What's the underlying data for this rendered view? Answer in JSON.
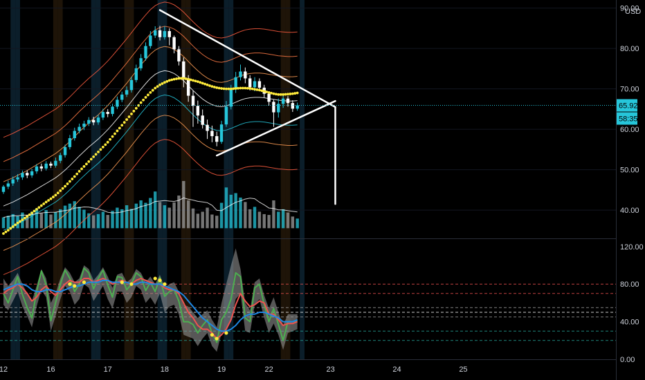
{
  "chart_data": [
    {
      "type": "candlestick",
      "panel": "price",
      "currency": "USD",
      "ylim": [
        33,
        92
      ],
      "y_ticks": [
        "40.00",
        "50.00",
        "60.00",
        "70.00",
        "80.00",
        "90.00"
      ],
      "last_price": "65.92",
      "countdown": "58:35",
      "candles": [
        [
          44.5,
          45.8,
          44.0,
          46.2
        ],
        [
          45.8,
          46.6,
          45.2,
          47.3
        ],
        [
          46.6,
          47.6,
          46.0,
          48.3
        ],
        [
          47.6,
          48.1,
          47.0,
          48.9
        ],
        [
          48.1,
          49.2,
          47.5,
          49.8
        ],
        [
          49.2,
          48.6,
          47.9,
          49.8
        ],
        [
          48.6,
          49.6,
          48.0,
          50.2
        ],
        [
          49.6,
          50.8,
          49.0,
          51.4
        ],
        [
          50.8,
          50.3,
          49.6,
          51.5
        ],
        [
          50.3,
          51.5,
          49.8,
          52.1
        ],
        [
          51.5,
          51.0,
          50.4,
          52.0
        ],
        [
          51.0,
          52.2,
          50.5,
          53.0
        ],
        [
          52.2,
          53.6,
          51.6,
          54.2
        ],
        [
          53.6,
          55.6,
          53.0,
          56.2
        ],
        [
          55.6,
          57.8,
          55.0,
          58.6
        ],
        [
          57.8,
          59.6,
          57.2,
          60.4
        ],
        [
          59.6,
          60.6,
          59.0,
          61.4
        ],
        [
          60.6,
          61.4,
          59.8,
          62.1
        ],
        [
          61.4,
          62.3,
          60.8,
          63.0
        ],
        [
          62.3,
          61.7,
          61.0,
          63.1
        ],
        [
          61.7,
          62.9,
          61.1,
          63.6
        ],
        [
          62.9,
          64.3,
          62.3,
          65.1
        ],
        [
          64.3,
          63.8,
          63.0,
          65.0
        ],
        [
          63.8,
          65.6,
          63.2,
          66.3
        ],
        [
          65.6,
          67.3,
          65.0,
          68.1
        ],
        [
          67.3,
          68.6,
          66.7,
          69.3
        ],
        [
          68.6,
          69.7,
          68.0,
          70.6
        ],
        [
          69.7,
          72.2,
          69.1,
          73.0
        ],
        [
          72.2,
          75.1,
          71.6,
          76.0
        ],
        [
          75.1,
          77.6,
          74.5,
          78.6
        ],
        [
          77.6,
          80.6,
          77.0,
          81.5
        ],
        [
          80.6,
          83.2,
          80.0,
          84.3
        ],
        [
          83.2,
          84.5,
          82.6,
          85.5
        ],
        [
          84.5,
          82.8,
          82.0,
          85.6
        ],
        [
          82.8,
          84.3,
          82.2,
          85.5
        ],
        [
          84.3,
          82.8,
          80.8,
          85.0
        ],
        [
          82.8,
          79.8,
          78.8,
          83.2
        ],
        [
          79.8,
          76.8,
          75.8,
          80.6
        ],
        [
          76.8,
          72.6,
          70.4,
          77.8
        ],
        [
          72.6,
          68.3,
          66.8,
          73.4
        ],
        [
          68.3,
          65.8,
          60.6,
          69.6
        ],
        [
          65.8,
          63.4,
          61.4,
          67.1
        ],
        [
          63.4,
          61.1,
          60.2,
          64.9
        ],
        [
          61.1,
          59.6,
          57.6,
          62.4
        ],
        [
          59.6,
          58.3,
          56.8,
          60.9
        ],
        [
          58.3,
          56.9,
          55.8,
          59.4
        ],
        [
          56.9,
          61.2,
          56.4,
          62.1
        ],
        [
          61.2,
          65.6,
          60.6,
          67.0
        ],
        [
          65.6,
          69.9,
          64.9,
          71.0
        ],
        [
          69.9,
          72.9,
          69.0,
          74.2
        ],
        [
          72.9,
          74.3,
          72.1,
          76.0
        ],
        [
          74.3,
          72.6,
          71.4,
          75.3
        ],
        [
          72.6,
          70.4,
          69.6,
          73.4
        ],
        [
          70.4,
          71.9,
          69.4,
          72.9
        ],
        [
          71.9,
          70.3,
          69.4,
          72.6
        ],
        [
          70.3,
          68.8,
          67.9,
          71.0
        ],
        [
          68.8,
          66.8,
          65.9,
          69.4
        ],
        [
          66.8,
          64.2,
          60.6,
          67.3
        ],
        [
          64.2,
          66.3,
          62.9,
          67.6
        ],
        [
          66.3,
          67.6,
          65.3,
          68.5
        ],
        [
          67.6,
          66.5,
          65.6,
          68.2
        ],
        [
          66.5,
          65.1,
          64.3,
          67.2
        ],
        [
          65.1,
          65.92,
          64.6,
          66.6
        ]
      ],
      "volumes": [
        38.2,
        38.6,
        39.0,
        38.5,
        39.4,
        38.8,
        39.6,
        40.4,
        39.2,
        40.0,
        38.9,
        39.5,
        40.2,
        41.1,
        41.6,
        42.2,
        40.8,
        40.1,
        39.2,
        38.7,
        39.0,
        39.6,
        38.8,
        39.8,
        40.6,
        40.2,
        41.2,
        40.3,
        41.6,
        42.4,
        41.8,
        43.0,
        44.6,
        42.0,
        41.2,
        40.6,
        41.9,
        43.6,
        47.2,
        42.4,
        40.4,
        39.1,
        39.6,
        40.6,
        38.9,
        38.6,
        41.8,
        45.6,
        43.8,
        44.2,
        43.1,
        42.0,
        40.2,
        40.8,
        39.6,
        39.0,
        38.8,
        42.4,
        39.6,
        40.2,
        39.4,
        38.4,
        37.9
      ],
      "volume_colors": [
        "#26c6da",
        "#26c6da",
        "#26c6da",
        "#26c6da",
        "#26c6da",
        "#9e9e9e",
        "#26c6da",
        "#26c6da",
        "#9e9e9e",
        "#26c6da",
        "#9e9e9e",
        "#26c6da",
        "#26c6da",
        "#26c6da",
        "#26c6da",
        "#26c6da",
        "#26c6da",
        "#26c6da",
        "#26c6da",
        "#9e9e9e",
        "#26c6da",
        "#26c6da",
        "#9e9e9e",
        "#26c6da",
        "#26c6da",
        "#26c6da",
        "#26c6da",
        "#26c6da",
        "#26c6da",
        "#26c6da",
        "#26c6da",
        "#26c6da",
        "#26c6da",
        "#9e9e9e",
        "#26c6da",
        "#9e9e9e",
        "#9e9e9e",
        "#9e9e9e",
        "#9e9e9e",
        "#9e9e9e",
        "#9e9e9e",
        "#9e9e9e",
        "#9e9e9e",
        "#9e9e9e",
        "#9e9e9e",
        "#9e9e9e",
        "#26c6da",
        "#26c6da",
        "#26c6da",
        "#26c6da",
        "#26c6da",
        "#9e9e9e",
        "#9e9e9e",
        "#26c6da",
        "#9e9e9e",
        "#9e9e9e",
        "#9e9e9e",
        "#9e9e9e",
        "#26c6da",
        "#26c6da",
        "#9e9e9e",
        "#9e9e9e",
        "#26c6da"
      ],
      "ema_dotted": [
        34.2,
        35.0,
        35.9,
        36.8,
        37.6,
        38.4,
        39.3,
        40.2,
        41.1,
        42.0,
        42.8,
        43.7,
        44.8,
        45.9,
        47.1,
        48.3,
        49.6,
        50.8,
        52.0,
        53.2,
        54.4,
        55.6,
        56.8,
        58.2,
        59.6,
        61.0,
        62.4,
        63.8,
        65.2,
        66.6,
        67.9,
        69.1,
        70.2,
        71.0,
        71.6,
        72.1,
        72.4,
        72.6,
        72.6,
        72.4,
        72.1,
        71.8,
        71.4,
        71.0,
        70.6,
        70.3,
        70.1,
        70.0,
        70.0,
        70.1,
        70.2,
        70.2,
        70.1,
        69.9,
        69.7,
        69.4,
        69.1,
        68.8,
        68.6,
        68.6,
        68.7,
        68.8,
        69.0
      ],
      "bands": {
        "colors": [
          "#ff5d40",
          "#ff7a45",
          "#ff9d55",
          "#ffffff",
          "#26c6da",
          "#ff9d55",
          "#ff5d40"
        ],
        "offsets": [
          17,
          11,
          6,
          0,
          -6,
          -11,
          -17
        ],
        "center": [
          41.0,
          41.5,
          42.0,
          42.6,
          43.2,
          43.8,
          44.5,
          45.2,
          45.9,
          46.6,
          47.3,
          48.0,
          48.9,
          49.9,
          51.0,
          52.2,
          53.4,
          54.5,
          55.6,
          56.6,
          57.6,
          58.7,
          59.9,
          61.2,
          62.6,
          64.0,
          65.4,
          66.9,
          68.4,
          69.9,
          71.3,
          72.6,
          73.6,
          74.2,
          74.5,
          74.3,
          73.8,
          73.0,
          72.0,
          70.8,
          69.6,
          68.5,
          67.5,
          66.7,
          66.1,
          65.7,
          65.6,
          65.8,
          66.2,
          66.7,
          67.2,
          67.6,
          67.8,
          67.9,
          67.9,
          67.8,
          67.6,
          67.4,
          67.2,
          67.1,
          67.0,
          67.0,
          67.1
        ]
      },
      "trendlines": [
        {
          "x0": 33,
          "y0": 89.5,
          "x1": 70,
          "y1": 65.5
        },
        {
          "x0": 45,
          "y0": 53.5,
          "x1": 70,
          "y1": 67.0
        },
        {
          "x0": 70,
          "y0": 65.5,
          "x1": 70,
          "y1": 41.5
        }
      ],
      "backgrounds": [
        [
          2,
          "#0b1e2a"
        ],
        [
          3,
          "#0b1e2a"
        ],
        [
          11,
          "#1e1408"
        ],
        [
          12,
          "#1e1408"
        ],
        [
          19,
          "#0b1e2a"
        ],
        [
          20,
          "#0b1e2a"
        ],
        [
          26,
          "#1e1408"
        ],
        [
          27,
          "#1e1408"
        ],
        [
          33,
          "#0b1e2a"
        ],
        [
          34,
          "#0b1e2a"
        ],
        [
          38,
          "#1e1408"
        ],
        [
          39,
          "#1e1408"
        ],
        [
          47,
          "#0b1e2a"
        ],
        [
          48,
          "#0b1e2a"
        ],
        [
          59,
          "#1e1408"
        ],
        [
          60,
          "#1e1408"
        ],
        [
          63,
          "#0b1e2a"
        ]
      ],
      "colors": {
        "up": "#26c6da",
        "down": "#ffffff",
        "ema": "#ffeb3b",
        "price_line": "#26c6da",
        "trend": "#ffffff"
      }
    },
    {
      "type": "line",
      "panel": "oscillator",
      "ylim": [
        0,
        125
      ],
      "y_ticks": [
        "0.00",
        "40.00",
        "80.00",
        "120.00"
      ],
      "levels": [
        {
          "value": 80,
          "color": "#ef5350"
        },
        {
          "value": 70,
          "color": "#ef5350"
        },
        {
          "value": 55,
          "color": "#9e9e9e"
        },
        {
          "value": 50,
          "color": "#ffffff"
        },
        {
          "value": 45,
          "color": "#9e9e9e"
        },
        {
          "value": 30,
          "color": "#26a69a"
        },
        {
          "value": 20,
          "color": "#26a69a"
        }
      ],
      "series": [
        {
          "color": "#4caf50",
          "values": [
            70,
            60,
            74,
            88,
            69,
            55,
            44,
            72,
            94,
            79,
            41,
            60,
            80,
            95,
            86,
            72,
            80,
            97,
            92,
            75,
            86,
            95,
            79,
            66,
            88,
            87,
            74,
            80,
            92,
            88,
            73,
            82,
            72,
            87,
            67,
            72,
            74,
            62,
            40,
            40,
            37,
            28,
            36,
            42,
            28,
            18,
            42,
            50,
            64,
            92,
            88,
            44,
            40,
            76,
            80,
            58,
            40,
            54,
            37,
            20,
            40,
            40,
            41
          ]
        },
        {
          "color": "#ef5350",
          "values": [
            70,
            74,
            76,
            80,
            76,
            70,
            62,
            66,
            74,
            78,
            72,
            68,
            74,
            80,
            84,
            82,
            82,
            86,
            86,
            82,
            84,
            86,
            84,
            80,
            82,
            84,
            82,
            80,
            84,
            86,
            84,
            82,
            80,
            80,
            76,
            74,
            74,
            70,
            60,
            50,
            44,
            36,
            32,
            32,
            28,
            22,
            26,
            32,
            42,
            58,
            70,
            62,
            56,
            58,
            62,
            60,
            48,
            48,
            42,
            36,
            38,
            38,
            40
          ]
        },
        {
          "color": "#1e88e5",
          "values": [
            74,
            76,
            78,
            80,
            80,
            78,
            74,
            72,
            72,
            74,
            74,
            72,
            72,
            74,
            76,
            78,
            78,
            80,
            82,
            82,
            82,
            84,
            84,
            82,
            82,
            82,
            82,
            80,
            80,
            82,
            82,
            80,
            80,
            80,
            78,
            76,
            74,
            72,
            68,
            62,
            56,
            50,
            44,
            40,
            36,
            32,
            30,
            30,
            32,
            36,
            42,
            46,
            48,
            48,
            50,
            50,
            48,
            46,
            44,
            40,
            40,
            40,
            42
          ]
        }
      ],
      "band_fill": {
        "color": "#9e9e9e",
        "upper": [
          86,
          78,
          84,
          92,
          80,
          70,
          62,
          78,
          96,
          86,
          60,
          70,
          86,
          98,
          92,
          82,
          86,
          100,
          96,
          84,
          90,
          98,
          88,
          76,
          90,
          92,
          82,
          86,
          96,
          92,
          82,
          88,
          80,
          90,
          76,
          80,
          82,
          72,
          58,
          56,
          50,
          44,
          48,
          52,
          42,
          34,
          60,
          80,
          100,
          118,
          96,
          60,
          52,
          82,
          86,
          68,
          54,
          66,
          50,
          36,
          48,
          48,
          48
        ],
        "lower": [
          58,
          52,
          62,
          72,
          56,
          46,
          34,
          56,
          74,
          66,
          30,
          46,
          64,
          78,
          72,
          58,
          64,
          80,
          76,
          62,
          70,
          78,
          64,
          54,
          72,
          72,
          60,
          66,
          78,
          74,
          60,
          66,
          58,
          70,
          50,
          56,
          58,
          48,
          26,
          24,
          22,
          14,
          22,
          28,
          14,
          8,
          28,
          32,
          40,
          64,
          70,
          30,
          28,
          58,
          64,
          44,
          28,
          38,
          26,
          10,
          28,
          30,
          32
        ]
      },
      "markers": [
        {
          "i": 14,
          "v": 80,
          "color": "#ffeb3b"
        },
        {
          "i": 15,
          "v": 78,
          "color": "#ffeb3b"
        },
        {
          "i": 17,
          "v": 82,
          "color": "#ffeb3b"
        },
        {
          "i": 25,
          "v": 82,
          "color": "#ffeb3b"
        },
        {
          "i": 27,
          "v": 80,
          "color": "#ffeb3b"
        },
        {
          "i": 32,
          "v": 86,
          "color": "#ffeb3b"
        },
        {
          "i": 33,
          "v": 84,
          "color": "#ffeb3b"
        },
        {
          "i": 34,
          "v": 80,
          "color": "#ffeb3b"
        },
        {
          "i": 44,
          "v": 26,
          "color": "#ffeb3b"
        },
        {
          "i": 45,
          "v": 22,
          "color": "#ffeb3b"
        },
        {
          "i": 47,
          "v": 28,
          "color": "#ffeb3b"
        }
      ]
    }
  ],
  "x_axis": {
    "labels": [
      {
        "text": "12",
        "i": 0
      },
      {
        "text": "16",
        "i": 10
      },
      {
        "text": "17",
        "i": 22
      },
      {
        "text": "18",
        "i": 34
      },
      {
        "text": "19",
        "i": 46
      },
      {
        "text": "22",
        "i": 56
      },
      {
        "text": "23",
        "i": 69
      },
      {
        "text": "24",
        "i": 83
      },
      {
        "text": "25",
        "i": 97
      }
    ]
  }
}
